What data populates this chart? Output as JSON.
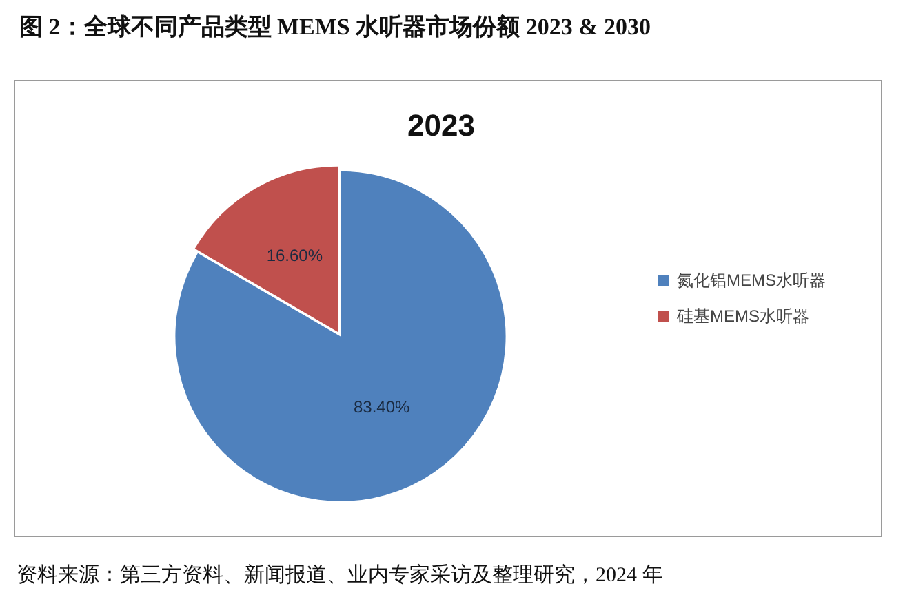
{
  "chart_data": {
    "type": "pie",
    "title": "图 2：全球不同产品类型 MEMS 水听器市场份额 2023 & 2030",
    "subtitle": "2023",
    "categories": [
      "氮化铝MEMS水听器",
      "硅基MEMS水听器"
    ],
    "values": [
      83.4,
      16.6
    ],
    "colors": [
      "#4f81bd",
      "#c0504d"
    ],
    "value_labels": [
      "83.40%",
      "16.60%"
    ],
    "legend": "right",
    "annotations": [
      "资料来源：第三方资料、新闻报道、业内专家采访及整理研究，2024 年"
    ]
  }
}
